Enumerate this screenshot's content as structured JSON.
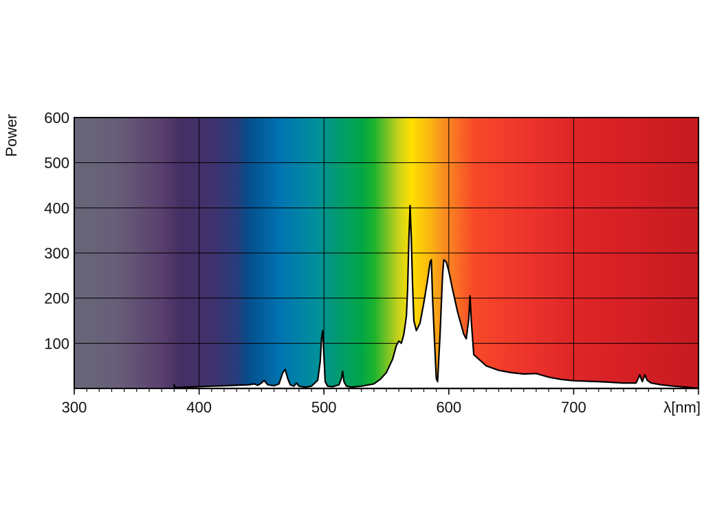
{
  "chart_data": {
    "type": "area",
    "title": "",
    "xlabel": "λ[nm]",
    "ylabel": "Power",
    "xlim": [
      300,
      800
    ],
    "ylim": [
      0,
      600
    ],
    "x_ticks": [
      300,
      400,
      500,
      600,
      700
    ],
    "x_tick_labels": [
      "300",
      "400",
      "500",
      "600",
      "700"
    ],
    "y_ticks": [
      100,
      200,
      300,
      400,
      500,
      600
    ],
    "y_tick_labels": [
      "100",
      "200",
      "300",
      "400",
      "500",
      "600"
    ],
    "grid": true,
    "legend": "none",
    "background": "visible-light spectrum gradient",
    "series": [
      {
        "x": [
          380,
          381,
          390,
          400,
          410,
          420,
          430,
          440,
          444,
          447,
          450,
          452,
          455,
          460,
          464,
          467,
          469,
          471,
          473,
          476,
          478,
          480,
          485,
          490,
          495,
          497,
          498,
          499,
          500,
          501,
          503,
          507,
          512,
          514,
          515,
          516,
          518,
          522,
          530,
          540,
          545,
          550,
          555,
          558,
          560,
          562,
          564,
          566,
          567,
          568,
          569,
          570,
          571,
          572,
          574,
          577,
          580,
          583,
          585,
          586,
          587,
          589,
          590,
          591,
          593,
          595,
          596,
          598,
          600,
          603,
          607,
          612,
          614,
          616,
          617,
          618,
          620,
          630,
          640,
          650,
          660,
          670,
          680,
          690,
          700,
          720,
          740,
          750,
          753,
          755,
          757,
          759,
          762,
          770,
          780,
          790,
          800
        ],
        "y": [
          8,
          2,
          3,
          4,
          5,
          6,
          7,
          8,
          10,
          7,
          12,
          18,
          8,
          6,
          10,
          35,
          42,
          22,
          8,
          5,
          12,
          5,
          3,
          5,
          18,
          60,
          110,
          128,
          70,
          15,
          5,
          4,
          8,
          22,
          38,
          15,
          5,
          3,
          5,
          10,
          20,
          35,
          65,
          95,
          105,
          100,
          120,
          160,
          220,
          330,
          405,
          330,
          230,
          150,
          128,
          145,
          190,
          240,
          280,
          285,
          200,
          80,
          22,
          15,
          120,
          250,
          285,
          280,
          260,
          220,
          170,
          120,
          110,
          155,
          205,
          150,
          75,
          50,
          40,
          35,
          32,
          33,
          25,
          20,
          17,
          15,
          12,
          12,
          30,
          15,
          30,
          18,
          12,
          8,
          5,
          3,
          0
        ]
      }
    ]
  }
}
